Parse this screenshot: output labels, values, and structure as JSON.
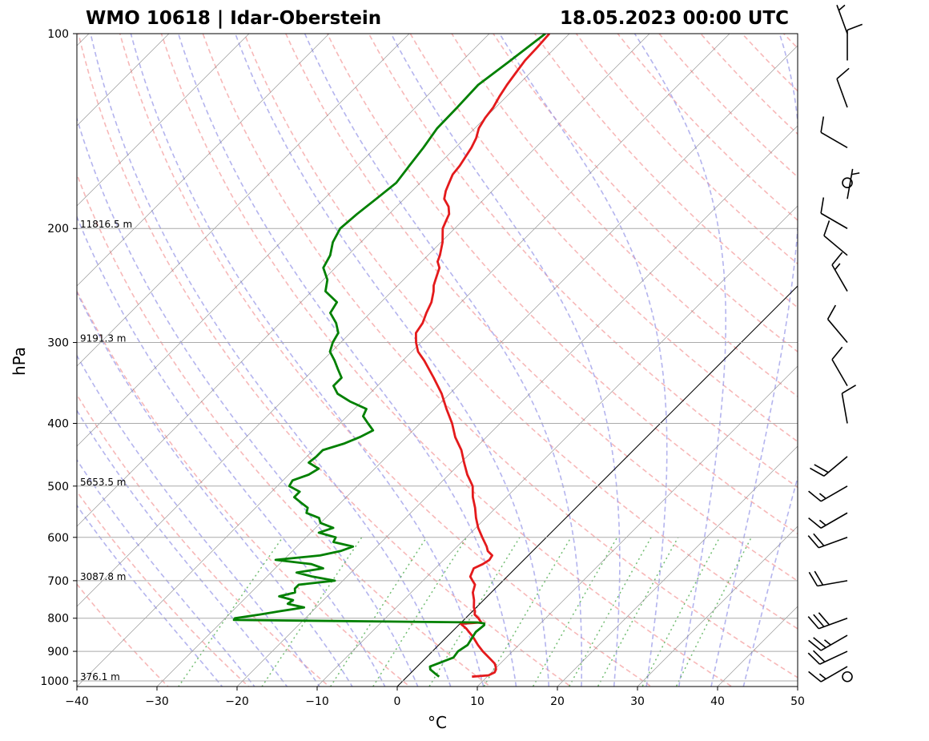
{
  "header": {
    "title_left": "WMO 10618 | Idar-Oberstein",
    "title_right": "18.05.2023 00:00 UTC"
  },
  "chart_data": {
    "type": "line",
    "subtype": "skew-t log-p sounding",
    "xlabel": "°C",
    "ylabel": "hPa",
    "xlim": [
      -40,
      50
    ],
    "ylim": [
      1020,
      100
    ],
    "y_scale": "log",
    "grid": true,
    "x_ticks": [
      -40,
      -30,
      -20,
      -10,
      0,
      10,
      20,
      30,
      40,
      50
    ],
    "x_tick_labels": [
      "−40",
      "−30",
      "−20",
      "−10",
      "0",
      "10",
      "20",
      "30",
      "40",
      "50"
    ],
    "y_ticks": [
      100,
      200,
      300,
      400,
      500,
      600,
      700,
      800,
      900,
      1000
    ],
    "y_tick_labels": [
      "100",
      "200",
      "300",
      "400",
      "500",
      "600",
      "700",
      "800",
      "900",
      "1000"
    ],
    "height_labels": [
      {
        "p": 1000,
        "text": "376.1 m"
      },
      {
        "p": 700,
        "text": "3087.8 m"
      },
      {
        "p": 500,
        "text": "5653.5 m"
      },
      {
        "p": 300,
        "text": "9191.3 m"
      },
      {
        "p": 200,
        "text": "11816.5 m"
      }
    ],
    "zero_isotherm_c": 0,
    "colors": {
      "temperature": "#e41a1c",
      "dewpoint": "#008000",
      "dry_adiabats": "#f4a0a0",
      "moist_adiabats": "#9b9be8",
      "mixing_ratio": "#59b259",
      "isotherms": "#808080",
      "isobars": "#aaaaaa"
    },
    "series": [
      {
        "key": "temperature",
        "p": [
          985,
          980,
          970,
          960,
          950,
          940,
          925,
          900,
          880,
          860,
          850,
          830,
          816,
          812,
          800,
          790,
          780,
          770,
          750,
          730,
          710,
          700,
          690,
          670,
          660,
          650,
          640,
          630,
          620,
          600,
          580,
          560,
          540,
          520,
          500,
          480,
          460,
          440,
          420,
          400,
          380,
          360,
          340,
          320,
          310,
          300,
          290,
          280,
          270,
          260,
          250,
          245,
          240,
          230,
          225,
          220,
          210,
          200,
          195,
          190,
          185,
          180,
          175,
          170,
          165,
          160,
          150,
          145,
          140,
          135,
          130,
          125,
          120,
          115,
          110,
          105,
          100
        ],
        "t": [
          8.1,
          10.0,
          10.4,
          10.2,
          9.8,
          9.3,
          8.2,
          6.3,
          4.9,
          3.6,
          2.9,
          1.4,
          0.1,
          2.5,
          1.6,
          0.7,
          0.3,
          -0.3,
          -1.2,
          -2.3,
          -3.0,
          -3.8,
          -4.6,
          -5.2,
          -4.6,
          -4.3,
          -4.5,
          -5.6,
          -6.3,
          -8.0,
          -9.7,
          -11.2,
          -12.6,
          -14.2,
          -15.6,
          -17.7,
          -19.6,
          -21.5,
          -23.9,
          -26.0,
          -28.5,
          -31.0,
          -34.0,
          -37.3,
          -39.2,
          -40.6,
          -41.8,
          -42.2,
          -43.0,
          -43.7,
          -44.8,
          -45.5,
          -46.0,
          -47.0,
          -48.0,
          -48.5,
          -49.8,
          -51.5,
          -52.0,
          -52.5,
          -53.5,
          -55.0,
          -55.8,
          -56.4,
          -57.0,
          -57.2,
          -58.0,
          -58.6,
          -59.5,
          -60.0,
          -60.3,
          -60.9,
          -61.4,
          -61.8,
          -62.2,
          -62.3,
          -62.5
        ]
      },
      {
        "key": "dewpoint",
        "p": [
          985,
          975,
          960,
          950,
          940,
          930,
          920,
          900,
          880,
          860,
          840,
          820,
          815,
          812,
          805,
          800,
          790,
          780,
          770,
          760,
          750,
          740,
          730,
          720,
          710,
          700,
          690,
          680,
          670,
          660,
          650,
          640,
          630,
          620,
          610,
          600,
          590,
          580,
          570,
          560,
          550,
          540,
          530,
          520,
          510,
          500,
          490,
          480,
          470,
          460,
          450,
          440,
          430,
          420,
          410,
          400,
          390,
          380,
          370,
          360,
          350,
          340,
          330,
          320,
          310,
          300,
          290,
          280,
          270,
          260,
          250,
          240,
          230,
          220,
          210,
          200,
          190,
          180,
          170,
          160,
          150,
          140,
          130,
          120,
          110,
          100
        ],
        "t": [
          4.0,
          3.2,
          2.0,
          1.6,
          2.2,
          2.8,
          3.4,
          3.2,
          3.6,
          3.3,
          3.0,
          3.2,
          3.0,
          2.0,
          -28.7,
          -28.8,
          -26.2,
          -24.0,
          -21.5,
          -24.0,
          -23.8,
          -26.0,
          -24.5,
          -25.0,
          -25.0,
          -21.0,
          -24.3,
          -26.8,
          -24.0,
          -26.0,
          -31.0,
          -26.0,
          -24.0,
          -23.0,
          -26.0,
          -26.3,
          -29.0,
          -27.8,
          -30.0,
          -30.8,
          -33.0,
          -33.5,
          -35.0,
          -36.5,
          -36.5,
          -38.5,
          -38.8,
          -37.5,
          -37.0,
          -39.0,
          -38.8,
          -38.8,
          -37.0,
          -35.8,
          -35.0,
          -36.5,
          -38.0,
          -38.5,
          -41.5,
          -44.0,
          -45.5,
          -45.5,
          -47.0,
          -48.5,
          -50.2,
          -51.0,
          -51.5,
          -53.0,
          -55.0,
          -55.5,
          -58.3,
          -59.5,
          -61.5,
          -62.2,
          -63.5,
          -64.3,
          -64.0,
          -63.5,
          -63.0,
          -63.5,
          -64.0,
          -64.7,
          -64.8,
          -65.0,
          -64.0,
          -63.0
        ]
      }
    ],
    "wind_barbs": [
      {
        "p": 985,
        "speed_kt": 0,
        "dir_deg": 0
      },
      {
        "p": 950,
        "speed_kt": 15,
        "dir_deg": 240
      },
      {
        "p": 900,
        "speed_kt": 20,
        "dir_deg": 245
      },
      {
        "p": 850,
        "speed_kt": 25,
        "dir_deg": 240
      },
      {
        "p": 800,
        "speed_kt": 30,
        "dir_deg": 250
      },
      {
        "p": 700,
        "speed_kt": 20,
        "dir_deg": 260
      },
      {
        "p": 600,
        "speed_kt": 20,
        "dir_deg": 250
      },
      {
        "p": 550,
        "speed_kt": 15,
        "dir_deg": 240
      },
      {
        "p": 500,
        "speed_kt": 15,
        "dir_deg": 240
      },
      {
        "p": 450,
        "speed_kt": 20,
        "dir_deg": 230
      },
      {
        "p": 400,
        "speed_kt": 10,
        "dir_deg": 350
      },
      {
        "p": 350,
        "speed_kt": 10,
        "dir_deg": 330
      },
      {
        "p": 300,
        "speed_kt": 10,
        "dir_deg": 320
      },
      {
        "p": 250,
        "speed_kt": 15,
        "dir_deg": 330
      },
      {
        "p": 220,
        "speed_kt": 10,
        "dir_deg": 310
      },
      {
        "p": 200,
        "speed_kt": 10,
        "dir_deg": 300
      },
      {
        "p": 180,
        "speed_kt": 5,
        "dir_deg": 10
      },
      {
        "p": 170,
        "speed_kt": 0,
        "dir_deg": 0
      },
      {
        "p": 150,
        "speed_kt": 10,
        "dir_deg": 300
      },
      {
        "p": 130,
        "speed_kt": 10,
        "dir_deg": 340
      },
      {
        "p": 110,
        "speed_kt": 10,
        "dir_deg": 0
      },
      {
        "p": 100,
        "speed_kt": 5,
        "dir_deg": 340
      }
    ]
  }
}
